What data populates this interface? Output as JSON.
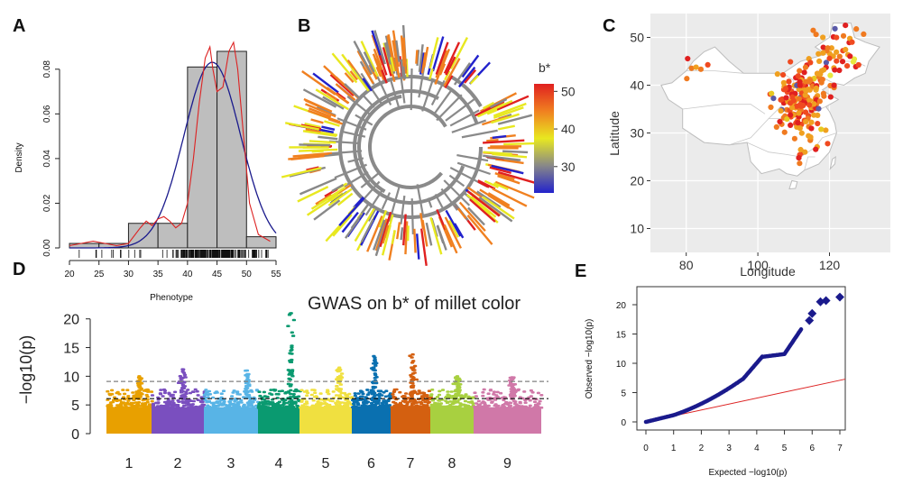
{
  "panels": {
    "A": "A",
    "B": "B",
    "C": "C",
    "D": "D",
    "E": "E"
  },
  "chart_data": [
    {
      "panel": "A",
      "type": "bar",
      "xlabel": "Phenotype",
      "ylabel": "Density",
      "xlim": [
        20,
        55
      ],
      "ylim": [
        0,
        0.09
      ],
      "xticks": [
        "20",
        "25",
        "30",
        "35",
        "40",
        "45",
        "50",
        "55"
      ],
      "yticks": [
        "0.00",
        "0.02",
        "0.04",
        "0.06",
        "0.08"
      ],
      "bins": [
        {
          "x0": 20,
          "x1": 25,
          "density": 0.002
        },
        {
          "x0": 25,
          "x1": 30,
          "density": 0.002
        },
        {
          "x0": 30,
          "x1": 35,
          "density": 0.011
        },
        {
          "x0": 35,
          "x1": 40,
          "density": 0.011
        },
        {
          "x0": 40,
          "x1": 45,
          "density": 0.081
        },
        {
          "x0": 45,
          "x1": 50,
          "density": 0.088
        },
        {
          "x0": 50,
          "x1": 55,
          "density": 0.005
        }
      ],
      "normal_fit": {
        "mean": 44.2,
        "sd": 4.8,
        "color": "#1a1a8c"
      },
      "kde_color": "#dd2222",
      "kde": [
        [
          20,
          0.001
        ],
        [
          22,
          0.002
        ],
        [
          24,
          0.003
        ],
        [
          26,
          0.002
        ],
        [
          28,
          0.001
        ],
        [
          30,
          0.002
        ],
        [
          32,
          0.009
        ],
        [
          33,
          0.012
        ],
        [
          34,
          0.01
        ],
        [
          35,
          0.013
        ],
        [
          36,
          0.014
        ],
        [
          37,
          0.012
        ],
        [
          38,
          0.009
        ],
        [
          39,
          0.011
        ],
        [
          40,
          0.02
        ],
        [
          41,
          0.04
        ],
        [
          42,
          0.065
        ],
        [
          43,
          0.085
        ],
        [
          43.8,
          0.09
        ],
        [
          44.3,
          0.08
        ],
        [
          45,
          0.07
        ],
        [
          46,
          0.072
        ],
        [
          47,
          0.088
        ],
        [
          47.8,
          0.092
        ],
        [
          48.5,
          0.08
        ],
        [
          49.5,
          0.05
        ],
        [
          50.5,
          0.02
        ],
        [
          52,
          0.006
        ],
        [
          54,
          0.003
        ]
      ]
    },
    {
      "panel": "B",
      "type": "other",
      "description_free": true,
      "colorbar_title": "b*",
      "colorbar_ticks": [
        "50",
        "40",
        "30"
      ],
      "colorbar_range": [
        23,
        52
      ],
      "colors": [
        "#2222cc",
        "#888888",
        "#e8e820",
        "#f08020",
        "#e02020"
      ]
    },
    {
      "panel": "C",
      "type": "scatter",
      "xlabel": "Longitude",
      "ylabel": "Latitude",
      "xlim": [
        70,
        137
      ],
      "ylim": [
        5,
        55
      ],
      "xticks": [
        "80",
        "100",
        "120"
      ],
      "yticks": [
        "10",
        "20",
        "30",
        "40",
        "50"
      ],
      "land_color": "#ffffff",
      "background": "#ebebeb"
    },
    {
      "panel": "D",
      "type": "scatter",
      "title": "GWAS on b* of millet color",
      "ylabel": "−log10(p)",
      "ylim": [
        0,
        22
      ],
      "yticks": [
        "0",
        "5",
        "10",
        "15",
        "20"
      ],
      "thresholds": [
        9.1,
        6.1
      ],
      "chromosomes": [
        {
          "label": "1",
          "color": "#e8a000",
          "max": 10.0
        },
        {
          "label": "2",
          "color": "#7a4fbf",
          "max": 11.2
        },
        {
          "label": "3",
          "color": "#58b4e6",
          "max": 11.0
        },
        {
          "label": "4",
          "color": "#0a9a70",
          "max": 21.0
        },
        {
          "label": "5",
          "color": "#f0e040",
          "max": 11.5
        },
        {
          "label": "6",
          "color": "#0a70b0",
          "max": 13.5
        },
        {
          "label": "7",
          "color": "#d46010",
          "max": 13.8
        },
        {
          "label": "8",
          "color": "#a8d040",
          "max": 10.0
        },
        {
          "label": "9",
          "color": "#d078a8",
          "max": 9.8
        }
      ]
    },
    {
      "panel": "E",
      "type": "scatter",
      "xlabel": "Expected  −log10(p)",
      "ylabel": "Observed  −log10(p)",
      "xlim": [
        0,
        7
      ],
      "ylim": [
        0,
        22
      ],
      "xticks": [
        "0",
        "1",
        "2",
        "3",
        "4",
        "5",
        "6",
        "7"
      ],
      "yticks": [
        "0",
        "5",
        "10",
        "15",
        "20"
      ],
      "point_color": "#1a1a8c",
      "line_color": "#dd2222"
    }
  ]
}
